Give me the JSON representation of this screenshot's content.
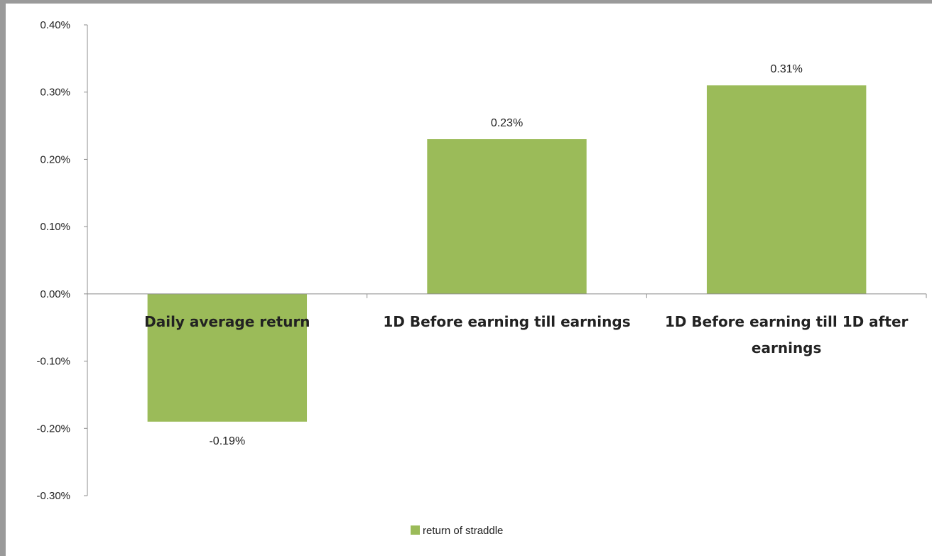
{
  "chart_data": {
    "type": "bar",
    "categories": [
      "Daily average return",
      "1D Before earning till earnings",
      "1D Before earning till 1D after earnings"
    ],
    "category_label_lines": [
      [
        "Daily average return"
      ],
      [
        "1D Before earning till earnings"
      ],
      [
        "1D Before earning till 1D after",
        "earnings"
      ]
    ],
    "series": [
      {
        "name": "return of straddle",
        "values": [
          -0.19,
          0.23,
          0.31
        ],
        "labels": [
          "-0.19%",
          "0.23%",
          "0.31%"
        ],
        "color": "#9bbb59"
      }
    ],
    "ylim": [
      -0.3,
      0.4
    ],
    "y_ticks": [
      0.4,
      0.3,
      0.2,
      0.1,
      0.0,
      -0.1,
      -0.2,
      -0.3
    ],
    "y_tick_labels": [
      "0.40%",
      "0.30%",
      "0.20%",
      "0.10%",
      "0.00%",
      "-0.10%",
      "-0.20%",
      "-0.30%"
    ],
    "grid": false,
    "legend": {
      "position": "bottom",
      "entries": [
        "return of straddle"
      ]
    },
    "title": "",
    "xlabel": "",
    "ylabel": "",
    "axis_color": "#8c8c8c",
    "frame_color": "#9a9a9a"
  }
}
